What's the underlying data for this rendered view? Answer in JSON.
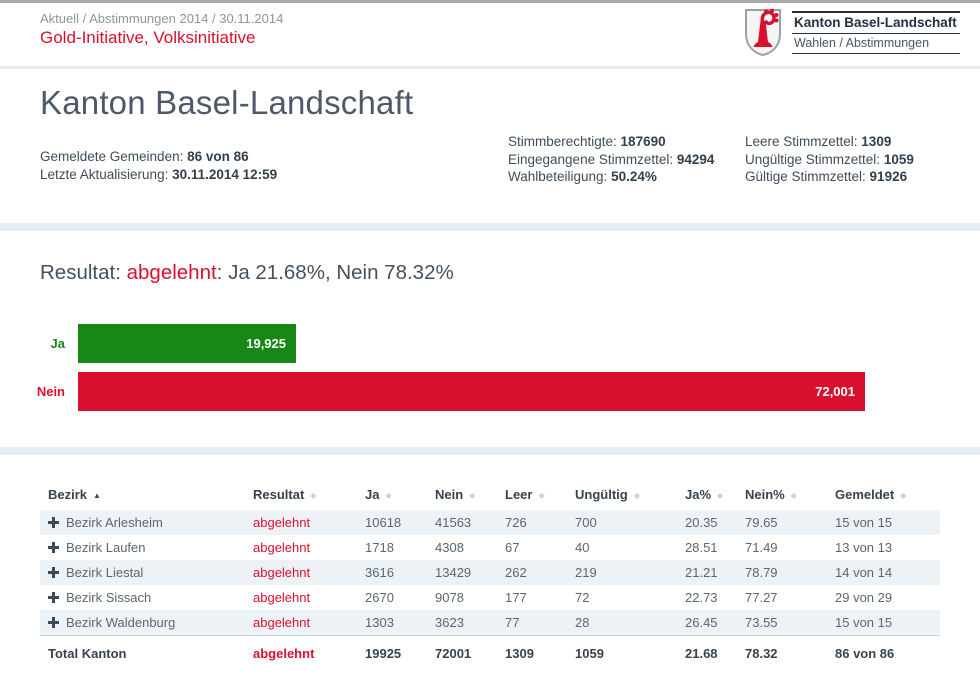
{
  "header": {
    "breadcrumb": "Aktuell / Abstimmungen 2014 / 30.11.2014",
    "title": "Gold-Initiative, Volksinitiative"
  },
  "logo": {
    "org": "Kanton Basel-Landschaft",
    "dept": "Wahlen / Abstimmungen"
  },
  "overview": {
    "heading": "Kanton Basel-Landschaft",
    "stats_left": [
      {
        "label": "Gemeldete Gemeinden:",
        "value": "86 von 86"
      },
      {
        "label": "Letzte Aktualisierung:",
        "value": "30.11.2014 12:59"
      }
    ],
    "stats_middle": [
      {
        "label": "Stimmberechtigte:",
        "value": "187690"
      },
      {
        "label": "Eingegangene Stimmzettel:",
        "value": "94294"
      },
      {
        "label": "Wahlbeteiligung:",
        "value": "50.24%"
      }
    ],
    "stats_right": [
      {
        "label": "Leere Stimmzettel:",
        "value": "1309"
      },
      {
        "label": "Ungültige Stimmzettel:",
        "value": "1059"
      },
      {
        "label": "Gültige Stimmzettel:",
        "value": "91926"
      }
    ]
  },
  "result": {
    "prefix": "Resultat: ",
    "verdict": "abgelehnt",
    "suffix": ": Ja 21.68%, Nein 78.32%"
  },
  "chart_data": {
    "type": "bar",
    "orientation": "horizontal",
    "title": "Resultat: abgelehnt: Ja 21.68%, Nein 78.32%",
    "categories": [
      "Ja",
      "Nein"
    ],
    "values": [
      19925,
      72001
    ],
    "value_labels": [
      "19,925",
      "72,001"
    ],
    "bar_colors": [
      "#178717",
      "#d8102e"
    ],
    "label_colors": [
      "#178717",
      "#d8102e"
    ],
    "xlim": [
      0,
      72001
    ],
    "grid": false,
    "legend": false
  },
  "table": {
    "columns": [
      {
        "label": "Bezirk",
        "sort": "asc"
      },
      {
        "label": "Resultat",
        "sort": "both"
      },
      {
        "label": "Ja",
        "sort": "both"
      },
      {
        "label": "Nein",
        "sort": "both"
      },
      {
        "label": "Leer",
        "sort": "both"
      },
      {
        "label": "Ungültig",
        "sort": "both"
      },
      {
        "label": "Ja%",
        "sort": "both"
      },
      {
        "label": "Nein%",
        "sort": "both"
      },
      {
        "label": "Gemeldet",
        "sort": "both"
      }
    ],
    "rows": [
      [
        "Bezirk Arlesheim",
        "abgelehnt",
        "10618",
        "41563",
        "726",
        "700",
        "20.35",
        "79.65",
        "15 von 15"
      ],
      [
        "Bezirk Laufen",
        "abgelehnt",
        "1718",
        "4308",
        "67",
        "40",
        "28.51",
        "71.49",
        "13 von 13"
      ],
      [
        "Bezirk Liestal",
        "abgelehnt",
        "3616",
        "13429",
        "262",
        "219",
        "21.21",
        "78.79",
        "14 von 14"
      ],
      [
        "Bezirk Sissach",
        "abgelehnt",
        "2670",
        "9078",
        "177",
        "72",
        "22.73",
        "77.27",
        "29 von 29"
      ],
      [
        "Bezirk Waldenburg",
        "abgelehnt",
        "1303",
        "3623",
        "77",
        "28",
        "26.45",
        "73.55",
        "15 von 15"
      ]
    ],
    "total": [
      "Total Kanton",
      "abgelehnt",
      "19925",
      "72001",
      "1309",
      "1059",
      "21.68",
      "78.32",
      "86 von 86"
    ]
  },
  "colors": {
    "accent_red": "#d8102e",
    "accent_green": "#178717",
    "section_band": "#e9eef2",
    "row_stripe": "#edf2f6",
    "body_text": "#3f4c5a"
  }
}
